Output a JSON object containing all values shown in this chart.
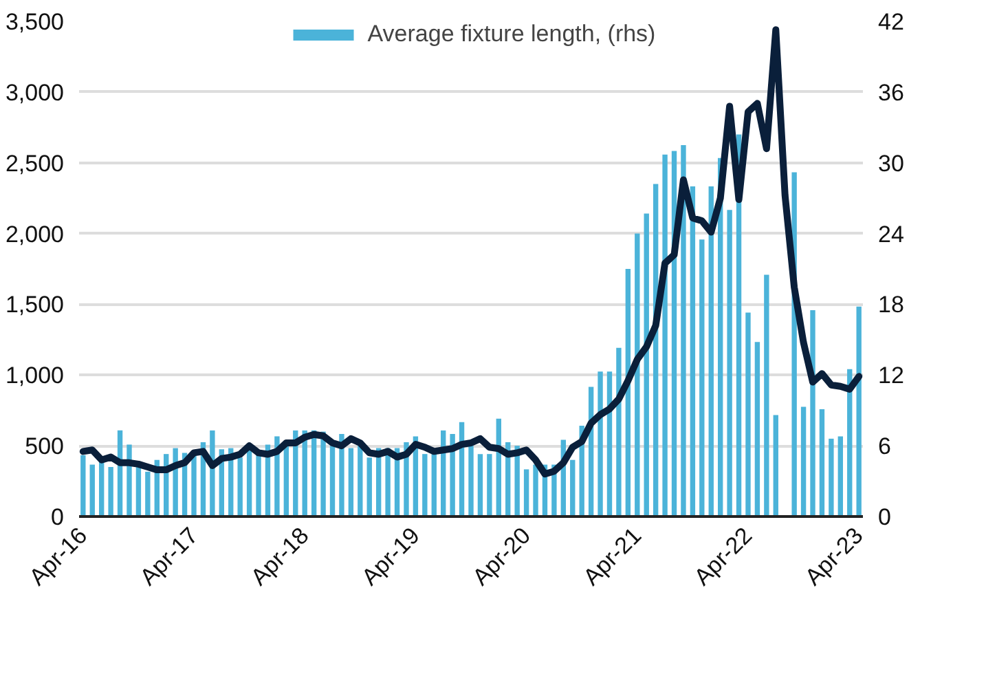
{
  "chart_data": {
    "type": "bar",
    "xlim": [
      "2016-03-18",
      "2023-04-14"
    ],
    "xticks": [
      {
        "value": "2016-04",
        "label": "Apr-16"
      },
      {
        "value": "2017-04",
        "label": "Apr-17"
      },
      {
        "value": "2018-04",
        "label": "Apr-18"
      },
      {
        "value": "2019-04",
        "label": "Apr-19"
      },
      {
        "value": "2020-04",
        "label": "Apr-20"
      },
      {
        "value": "2021-04",
        "label": "Apr-21"
      },
      {
        "value": "2022-04",
        "label": "Apr-22"
      },
      {
        "value": "2023-04",
        "label": "Apr-23"
      }
    ],
    "ylim": [
      0,
      3500
    ],
    "yticks": [
      {
        "value": 0,
        "label": "0"
      },
      {
        "value": 500,
        "label": "500"
      },
      {
        "value": 1000,
        "label": "1,000"
      },
      {
        "value": 1500,
        "label": "1,500"
      },
      {
        "value": 2000,
        "label": "2,000"
      },
      {
        "value": 2500,
        "label": "2,500"
      },
      {
        "value": 3000,
        "label": "3,000"
      },
      {
        "value": 3500,
        "label": "3,500"
      }
    ],
    "y2lim": [
      0,
      42
    ],
    "y2ticks": [
      0,
      6,
      12,
      18,
      24,
      30,
      36,
      42
    ],
    "grid": "y",
    "legend": "top",
    "series": [
      {
        "name": "Average fixture length, (rhs)",
        "axis": "y2",
        "color": "#4bb3d9",
        "values": [
          5.2,
          4.4,
          5.0,
          4.2,
          7.3,
          6.1,
          4.2,
          3.8,
          4.8,
          5.3,
          5.8,
          5.4,
          5.5,
          6.3,
          7.3,
          5.7,
          5.8,
          5.0,
          6.0,
          5.4,
          6.1,
          6.8,
          6.0,
          7.3,
          7.3,
          7.3,
          7.2,
          6.0,
          7.0,
          5.8,
          6.0,
          5.0,
          5.8,
          5.8,
          5.8,
          6.3,
          6.8,
          5.3,
          5.3,
          7.3,
          7.0,
          8.0,
          6.0,
          5.3,
          5.3,
          8.3,
          6.3,
          6.0,
          4.0,
          4.4,
          4.4,
          4.4,
          6.5,
          4.8,
          7.7,
          11.0,
          12.3,
          12.3,
          14.3,
          21.0,
          24.0,
          25.7,
          28.2,
          30.7,
          31.0,
          31.5,
          28.0,
          23.5,
          28.0,
          30.4,
          26.0,
          32.4,
          17.3,
          14.8,
          20.5,
          8.6,
          null,
          29.2,
          9.3,
          17.5,
          9.1,
          6.6,
          6.8,
          12.5,
          17.8
        ]
      },
      {
        "type": "line",
        "color": "#0a1f3a",
        "values": [
          460,
          470,
          400,
          420,
          380,
          380,
          370,
          350,
          330,
          330,
          360,
          380,
          450,
          460,
          360,
          410,
          420,
          440,
          500,
          450,
          440,
          460,
          520,
          520,
          560,
          580,
          570,
          520,
          500,
          550,
          520,
          450,
          440,
          460,
          420,
          440,
          510,
          490,
          460,
          470,
          480,
          510,
          520,
          550,
          490,
          480,
          440,
          450,
          470,
          400,
          300,
          320,
          380,
          490,
          530,
          660,
          720,
          760,
          830,
          960,
          1110,
          1200,
          1350,
          1790,
          1850,
          2380,
          2110,
          2090,
          2010,
          2250,
          2900,
          2240,
          2860,
          2920,
          2600,
          3440,
          2270,
          1620,
          1230,
          950,
          1010,
          930,
          920,
          900,
          990
        ]
      }
    ],
    "x": [
      "2016-04",
      "2016-05",
      "2016-06",
      "2016-07",
      "2016-08",
      "2016-09",
      "2016-10",
      "2016-11",
      "2016-12",
      "2017-01",
      "2017-02",
      "2017-03",
      "2017-04",
      "2017-05",
      "2017-06",
      "2017-07",
      "2017-08",
      "2017-09",
      "2017-10",
      "2017-11",
      "2017-12",
      "2018-01",
      "2018-02",
      "2018-03",
      "2018-04",
      "2018-05",
      "2018-06",
      "2018-07",
      "2018-08",
      "2018-09",
      "2018-10",
      "2018-11",
      "2018-12",
      "2019-01",
      "2019-02",
      "2019-03",
      "2019-04",
      "2019-05",
      "2019-06",
      "2019-07",
      "2019-08",
      "2019-09",
      "2019-10",
      "2019-11",
      "2019-12",
      "2020-01",
      "2020-02",
      "2020-03",
      "2020-04",
      "2020-05",
      "2020-06",
      "2020-07",
      "2020-08",
      "2020-09",
      "2020-10",
      "2020-11",
      "2020-12",
      "2021-01",
      "2021-02",
      "2021-03",
      "2021-04",
      "2021-05",
      "2021-06",
      "2021-07",
      "2021-08",
      "2021-09",
      "2021-10",
      "2021-11",
      "2021-12",
      "2022-01",
      "2022-02",
      "2022-03",
      "2022-04",
      "2022-05",
      "2022-06",
      "2022-07",
      "2022-08",
      "2022-09",
      "2022-10",
      "2022-11",
      "2022-12",
      "2023-01",
      "2023-02",
      "2023-03",
      "2023-04"
    ]
  }
}
